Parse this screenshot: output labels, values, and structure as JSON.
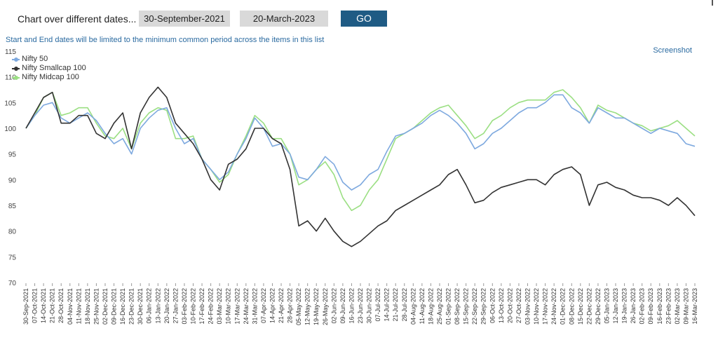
{
  "header": {
    "label": "Chart over different dates...",
    "start_date": "30-September-2021",
    "end_date": "20-March-2023",
    "go_label": "GO"
  },
  "note": "Start and End dates will be limited to the minimum common period across the items in this list",
  "screenshot_label": "Screenshot",
  "chart_data": {
    "type": "line",
    "ylim": [
      70,
      115
    ],
    "yticks": [
      70,
      75,
      80,
      85,
      90,
      95,
      100,
      105,
      110,
      115
    ],
    "grid": false,
    "legend": "top-left",
    "x_tick_labels": [
      "30-Sep-2021",
      "07-Oct-2021",
      "14-Oct-2021",
      "21-Oct-2021",
      "28-Oct-2021",
      "04-Nov-2021",
      "11-Nov-2021",
      "18-Nov-2021",
      "25-Nov-2021",
      "02-Dec-2021",
      "09-Dec-2021",
      "16-Dec-2021",
      "23-Dec-2021",
      "30-Dec-2021",
      "06-Jan-2022",
      "13-Jan-2022",
      "20-Jan-2022",
      "27-Jan-2022",
      "03-Feb-2022",
      "10-Feb-2022",
      "17-Feb-2022",
      "24-Feb-2022",
      "03-Mar-2022",
      "10-Mar-2022",
      "17-Mar-2022",
      "24-Mar-2022",
      "31-Mar-2022",
      "07-Apr-2022",
      "14-Apr-2022",
      "21-Apr-2022",
      "28-Apr-2022",
      "05-May-2022",
      "12-May-2022",
      "19-May-2022",
      "26-May-2022",
      "02-Jun-2022",
      "09-Jun-2022",
      "16-Jun-2022",
      "23-Jun-2022",
      "30-Jun-2022",
      "07-Jul-2022",
      "14-Jul-2022",
      "21-Jul-2022",
      "28-Jul-2022",
      "04-Aug-2022",
      "11-Aug-2022",
      "18-Aug-2022",
      "25-Aug-2022",
      "01-Sep-2022",
      "08-Sep-2022",
      "15-Sep-2022",
      "22-Sep-2022",
      "29-Sep-2022",
      "06-Oct-2022",
      "13-Oct-2022",
      "20-Oct-2022",
      "27-Oct-2022",
      "03-Nov-2022",
      "10-Nov-2022",
      "17-Nov-2022",
      "24-Nov-2022",
      "01-Dec-2022",
      "08-Dec-2022",
      "15-Dec-2022",
      "22-Dec-2022",
      "29-Dec-2022",
      "05-Jan-2023",
      "12-Jan-2023",
      "19-Jan-2023",
      "26-Jan-2023",
      "02-Feb-2023",
      "09-Feb-2023",
      "16-Feb-2023",
      "23-Feb-2023",
      "02-Mar-2023",
      "09-Mar-2023",
      "16-Mar-2023"
    ],
    "series": [
      {
        "name": "Nifty 50",
        "color": "#7ea9df",
        "values": [
          100,
          102.5,
          104.5,
          105,
          102,
          101,
          102,
          103,
          101.5,
          99,
          97,
          98,
          95,
          100,
          102,
          103.5,
          104,
          100,
          97,
          98,
          94,
          92,
          90,
          91.5,
          95,
          98,
          102,
          100,
          96.5,
          97,
          95,
          90.5,
          90,
          92,
          94.5,
          93,
          89.5,
          88,
          89,
          91,
          92,
          95.5,
          98.5,
          99,
          100,
          101,
          102.5,
          103.5,
          102.5,
          101,
          99,
          96,
          97,
          99,
          100,
          101.5,
          103,
          104,
          104,
          105,
          106.5,
          106.5,
          104,
          103,
          101,
          104,
          103,
          102,
          102,
          101,
          100,
          99,
          100,
          99.5,
          99,
          97,
          96.5
        ]
      },
      {
        "name": "Nifty Smallcap 100",
        "color": "#333333",
        "values": [
          100,
          103,
          106,
          107,
          101,
          101,
          102.5,
          102.5,
          99,
          98,
          101,
          103,
          96,
          103,
          106,
          108,
          106,
          101,
          99,
          97,
          94,
          90,
          88,
          93,
          94,
          96,
          100,
          100,
          98,
          97,
          92,
          81,
          82,
          80,
          82.5,
          80,
          78,
          77,
          78,
          79.5,
          81,
          82,
          84,
          85,
          86,
          87,
          88,
          89,
          91,
          92,
          89,
          85.5,
          86,
          87.5,
          88.5,
          89,
          89.5,
          90,
          90,
          89,
          91,
          92,
          92.5,
          91,
          85,
          89,
          89.5,
          88.5,
          88,
          87,
          86.5,
          86.5,
          86,
          85,
          86.5,
          85,
          83
        ]
      },
      {
        "name": "Nifty Midcap 100",
        "color": "#9bdf83",
        "values": [
          100,
          102.5,
          106,
          107,
          102.5,
          103,
          104,
          104,
          101,
          98.5,
          98,
          100,
          96,
          101,
          103,
          104,
          103.5,
          98,
          98,
          98.5,
          94,
          92,
          89.5,
          91,
          95,
          98.5,
          102.5,
          101,
          98,
          98,
          95,
          89,
          90,
          92,
          93.5,
          91,
          86.5,
          84,
          85,
          88,
          90,
          94,
          98,
          99,
          100,
          101.5,
          103,
          104,
          104.5,
          102.5,
          100.5,
          98,
          99,
          101.5,
          102.5,
          104,
          105,
          105.5,
          105.5,
          105.5,
          107,
          107.5,
          106,
          104,
          101,
          104.5,
          103.5,
          103,
          102,
          101,
          100.5,
          99.5,
          100,
          100.5,
          101.5,
          100,
          98.5
        ]
      }
    ]
  }
}
